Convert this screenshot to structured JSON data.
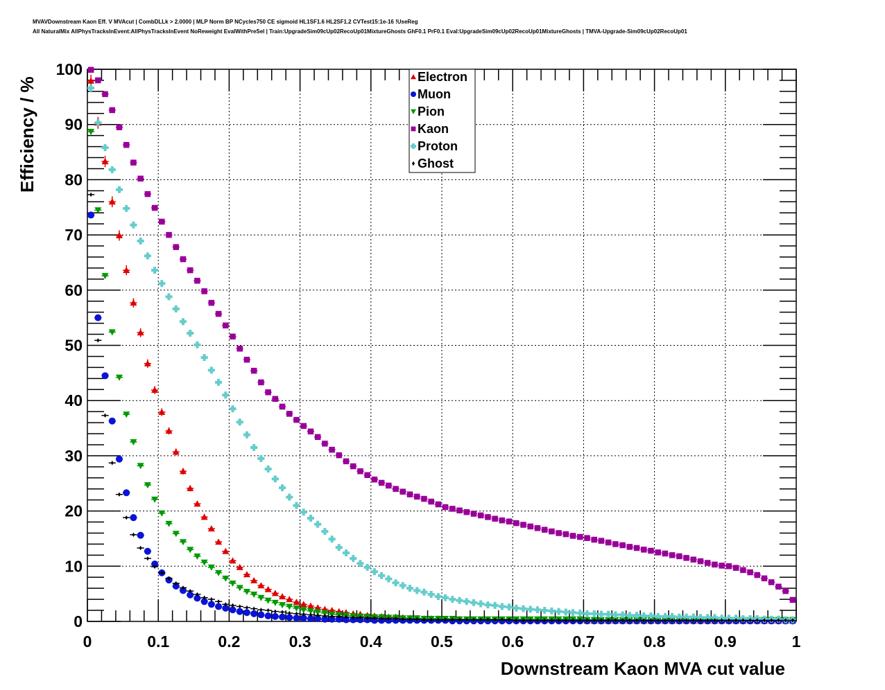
{
  "title_line1": "MVAVDownstream Kaon Eff. V MVAcut | CombDLLk > 2.0000 | MLP Norm BP NCycles750 CE sigmoid HL1SF1.6 HL2SF1.2 CVTest15:1e-16 !UseReg",
  "title_line2": "All NaturalMix AllPhysTracksInEvent:AllPhysTracksInEvent NoReweight EvalWithPreSel | Train:UpgradeSim09cUp02RecoUp01MixtureGhosts GhF0.1 PrF0.1 Eval:UpgradeSim09cUp02RecoUp01MixtureGhosts | TMVA-Upgrade-Sim09cUp02RecoUp01",
  "chart_data": {
    "type": "scatter",
    "xlabel": "Downstream Kaon MVA cut value",
    "ylabel": "Efficiency / %",
    "xlim": [
      0,
      1
    ],
    "ylim": [
      0,
      100
    ],
    "grid": true,
    "legend_position": "top-center",
    "xticks": [
      "0",
      "0.1",
      "0.2",
      "0.3",
      "0.4",
      "0.5",
      "0.6",
      "0.7",
      "0.8",
      "0.9",
      "1"
    ],
    "yticks": [
      "0",
      "10",
      "20",
      "30",
      "40",
      "50",
      "60",
      "70",
      "80",
      "90",
      "100"
    ],
    "bin_width": 0.01,
    "x_first_bin_center": 0.005,
    "series": [
      {
        "name": "Electron",
        "color": "#e00000",
        "marker": "triangle-up",
        "values": [
          97.9,
          90.3,
          83.3,
          76.0,
          69.9,
          63.6,
          57.7,
          52.3,
          46.7,
          41.9,
          37.9,
          34.5,
          30.7,
          27.2,
          24.1,
          21.3,
          18.9,
          16.8,
          14.4,
          12.7,
          11.0,
          9.8,
          8.5,
          7.4,
          6.5,
          5.8,
          5.1,
          4.5,
          4.0,
          3.5,
          3.1,
          2.8,
          2.5,
          2.2,
          2.0,
          1.8,
          1.6,
          1.4,
          1.3,
          1.1,
          1.0,
          0.9,
          0.8,
          0.8,
          0.7,
          0.6,
          0.6,
          0.5,
          0.5,
          0.5,
          0.4,
          0.4,
          0.4,
          0.3,
          0.3,
          0.3,
          0.3,
          0.3,
          0.2,
          0.2,
          0.2,
          0.2,
          0.2,
          0.2,
          0.2,
          0.2,
          0.2,
          0.2,
          0.2,
          0.2,
          0.1,
          0.1,
          0.1,
          0.1,
          0.1,
          0.1,
          0.1,
          0.1,
          0.1,
          0.1,
          0.1,
          0.1,
          0.1,
          0.1,
          0.1,
          0.1,
          0.1,
          0.1,
          0.1,
          0.1,
          0.1,
          0.1,
          0.1,
          0.1,
          0.1,
          0.1,
          0.1,
          0.1,
          0.1,
          0.1
        ]
      },
      {
        "name": "Muon",
        "color": "#0a14d6",
        "marker": "circle",
        "values": [
          73.6,
          55.0,
          44.5,
          36.3,
          29.4,
          23.3,
          18.8,
          15.6,
          12.7,
          10.4,
          8.8,
          7.5,
          6.4,
          5.6,
          4.8,
          4.2,
          3.6,
          3.1,
          2.7,
          2.4,
          2.1,
          1.8,
          1.6,
          1.4,
          1.2,
          1.0,
          0.9,
          0.8,
          0.7,
          0.6,
          0.6,
          0.5,
          0.5,
          0.4,
          0.4,
          0.4,
          0.3,
          0.3,
          0.3,
          0.3,
          0.2,
          0.2,
          0.2,
          0.2,
          0.2,
          0.2,
          0.2,
          0.2,
          0.2,
          0.2,
          0.2,
          0.1,
          0.1,
          0.1,
          0.1,
          0.1,
          0.1,
          0.1,
          0.1,
          0.1,
          0.1,
          0.1,
          0.1,
          0.1,
          0.1,
          0.1,
          0.1,
          0.1,
          0.1,
          0.1,
          0.1,
          0.1,
          0.1,
          0.1,
          0.1,
          0.1,
          0.1,
          0.1,
          0.1,
          0.1,
          0.1,
          0.1,
          0.1,
          0.1,
          0.1,
          0.1,
          0.1,
          0.1,
          0.1,
          0.1,
          0.1,
          0.1,
          0.1,
          0.1,
          0.1,
          0.1,
          0.1,
          0.1,
          0.1,
          0.1
        ]
      },
      {
        "name": "Pion",
        "color": "#009a00",
        "marker": "triangle-down",
        "values": [
          88.7,
          74.5,
          62.6,
          52.4,
          44.2,
          37.5,
          32.5,
          28.2,
          24.7,
          22.1,
          19.6,
          17.7,
          15.9,
          14.4,
          13.0,
          11.8,
          10.7,
          9.8,
          8.8,
          7.8,
          6.9,
          6.1,
          5.4,
          4.9,
          4.3,
          3.8,
          3.4,
          3.0,
          2.7,
          2.4,
          2.1,
          1.9,
          1.7,
          1.5,
          1.3,
          1.2,
          1.1,
          1.0,
          0.9,
          0.9,
          0.8,
          0.8,
          0.7,
          0.7,
          0.6,
          0.6,
          0.6,
          0.5,
          0.5,
          0.5,
          0.5,
          0.5,
          0.4,
          0.4,
          0.4,
          0.4,
          0.4,
          0.4,
          0.4,
          0.4,
          0.4,
          0.4,
          0.4,
          0.4,
          0.4,
          0.4,
          0.4,
          0.4,
          0.4,
          0.4,
          0.3,
          0.3,
          0.3,
          0.3,
          0.3,
          0.3,
          0.3,
          0.3,
          0.3,
          0.3,
          0.3,
          0.3,
          0.3,
          0.3,
          0.3,
          0.3,
          0.3,
          0.3,
          0.3,
          0.3,
          0.3,
          0.3,
          0.3,
          0.3,
          0.3,
          0.3,
          0.3,
          0.3,
          0.3,
          0.3
        ]
      },
      {
        "name": "Kaon",
        "color": "#990099",
        "marker": "square",
        "values": [
          99.9,
          98.0,
          95.5,
          92.6,
          89.5,
          86.3,
          83.1,
          80.2,
          77.4,
          74.9,
          72.4,
          70.0,
          67.8,
          65.6,
          63.6,
          61.7,
          59.8,
          57.7,
          55.7,
          53.6,
          51.6,
          49.4,
          47.4,
          45.4,
          43.3,
          41.5,
          40.3,
          38.9,
          37.6,
          36.5,
          35.4,
          34.4,
          33.4,
          32.2,
          31.1,
          30.1,
          29.0,
          28.1,
          27.2,
          26.5,
          25.7,
          25.1,
          24.6,
          24.0,
          23.5,
          23.0,
          22.6,
          22.2,
          21.7,
          21.2,
          20.7,
          20.4,
          20.1,
          19.8,
          19.5,
          19.2,
          18.9,
          18.6,
          18.3,
          18.1,
          17.8,
          17.5,
          17.2,
          16.9,
          16.6,
          16.3,
          16.0,
          15.8,
          15.5,
          15.3,
          15.1,
          14.8,
          14.6,
          14.3,
          14.0,
          13.8,
          13.5,
          13.3,
          13.0,
          12.8,
          12.5,
          12.3,
          12.0,
          11.8,
          11.5,
          11.2,
          10.9,
          10.6,
          10.3,
          10.1,
          10.0,
          9.7,
          9.3,
          8.9,
          8.4,
          7.8,
          7.1,
          6.3,
          5.5,
          3.9
        ]
      },
      {
        "name": "Proton",
        "color": "#66cccc",
        "marker": "cross",
        "values": [
          96.6,
          90.3,
          85.8,
          81.8,
          78.2,
          74.8,
          71.8,
          68.9,
          66.2,
          63.6,
          61.2,
          58.8,
          56.6,
          54.3,
          52.2,
          50.1,
          47.8,
          45.5,
          43.3,
          41.0,
          38.5,
          36.1,
          33.8,
          31.5,
          29.5,
          27.6,
          25.8,
          24.2,
          22.5,
          21.0,
          19.8,
          18.7,
          17.6,
          16.3,
          14.9,
          13.4,
          12.4,
          11.4,
          10.5,
          9.8,
          9.0,
          8.3,
          7.7,
          7.0,
          6.5,
          6.0,
          5.6,
          5.3,
          4.9,
          4.5,
          4.3,
          4.0,
          3.8,
          3.6,
          3.4,
          3.2,
          3.0,
          2.9,
          2.7,
          2.6,
          2.4,
          2.3,
          2.2,
          2.1,
          2.0,
          1.9,
          1.8,
          1.7,
          1.6,
          1.5,
          1.4,
          1.4,
          1.3,
          1.3,
          1.2,
          1.2,
          1.1,
          1.1,
          1.0,
          1.0,
          0.9,
          0.9,
          0.9,
          0.8,
          0.8,
          0.8,
          0.7,
          0.7,
          0.7,
          0.6,
          0.6,
          0.6,
          0.5,
          0.5,
          0.5,
          0.4,
          0.4,
          0.4,
          0.3,
          0.3
        ]
      },
      {
        "name": "Ghost",
        "color": "#000000",
        "marker": "diamond",
        "values": [
          77.3,
          50.9,
          37.3,
          28.7,
          23.0,
          18.8,
          15.7,
          13.3,
          11.4,
          9.9,
          8.8,
          7.8,
          6.9,
          6.1,
          5.5,
          4.9,
          4.3,
          4.0,
          3.6,
          3.1,
          2.9,
          2.7,
          2.5,
          2.3,
          2.1,
          2.0,
          1.8,
          1.7,
          1.5,
          1.4,
          1.3,
          1.2,
          1.1,
          1.0,
          0.9,
          0.9,
          0.8,
          0.7,
          0.7,
          0.6,
          0.6,
          0.5,
          0.5,
          0.5,
          0.4,
          0.4,
          0.4,
          0.3,
          0.3,
          0.3,
          0.3,
          0.3,
          0.3,
          0.3,
          0.3,
          0.3,
          0.3,
          0.3,
          0.3,
          0.3,
          0.2,
          0.2,
          0.2,
          0.2,
          0.2,
          0.2,
          0.2,
          0.2,
          0.2,
          0.2,
          0.2,
          0.2,
          0.2,
          0.2,
          0.2,
          0.2,
          0.2,
          0.2,
          0.2,
          0.2,
          0.2,
          0.2,
          0.2,
          0.2,
          0.2,
          0.2,
          0.2,
          0.2,
          0.2,
          0.2,
          0.2,
          0.2,
          0.2,
          0.2,
          0.2,
          0.2,
          0.2,
          0.2,
          0.2,
          0.2
        ]
      }
    ]
  }
}
